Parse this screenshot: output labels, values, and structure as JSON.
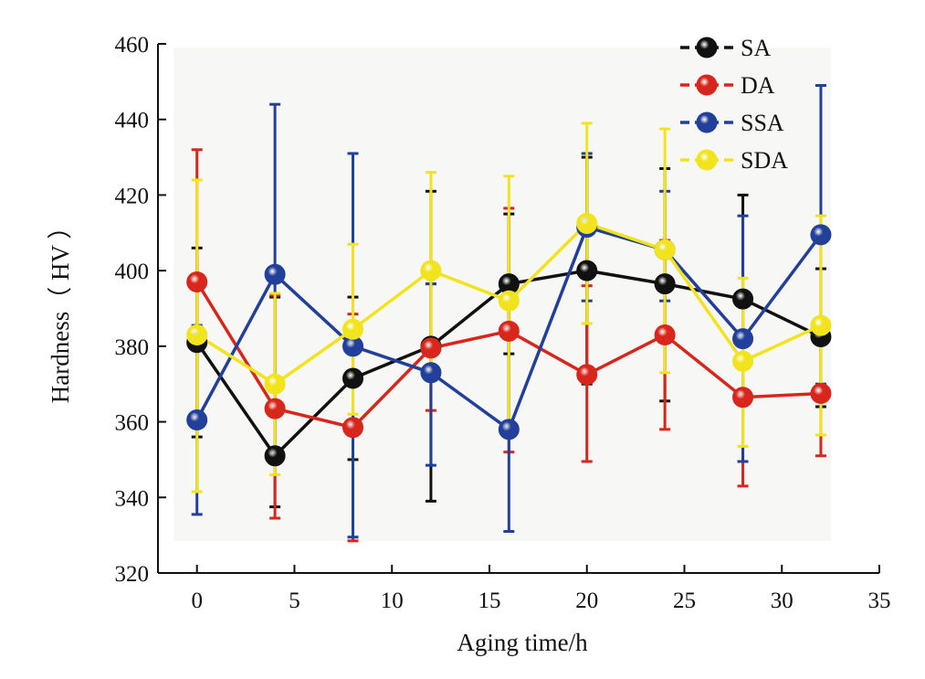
{
  "chart_data": {
    "type": "line",
    "title": "",
    "xlabel": "Aging time/h",
    "ylabel": "Hardness（ HV ）",
    "xlim": [
      -2,
      35
    ],
    "ylim": [
      320,
      460
    ],
    "x_ticks": [
      0,
      5,
      10,
      15,
      20,
      25,
      30,
      35
    ],
    "y_ticks": [
      320,
      340,
      360,
      380,
      400,
      420,
      440,
      460
    ],
    "x_tick_labels": [
      "0",
      "5",
      "10",
      "15",
      "20",
      "25",
      "30",
      "35"
    ],
    "y_tick_labels": [
      "320",
      "340",
      "360",
      "380",
      "400",
      "420",
      "440",
      "460"
    ],
    "grid": false,
    "legend_position": "top-right",
    "x": [
      0,
      4,
      8,
      12,
      16,
      20,
      24,
      28,
      32
    ],
    "series": [
      {
        "name": "SA",
        "color": "#111111",
        "values": [
          381,
          351,
          371.5,
          380,
          396.5,
          400,
          396.5,
          392.5,
          382.5
        ],
        "error_upper": [
          406,
          393,
          393,
          421,
          415,
          430,
          427,
          420,
          400.5
        ],
        "error_lower": [
          356,
          337.5,
          350,
          339,
          378,
          370,
          365.5,
          365,
          364
        ]
      },
      {
        "name": "DA",
        "color": "#d9261c",
        "values": [
          397,
          363.5,
          358.5,
          379.5,
          384,
          372.5,
          383,
          366.5,
          367.5
        ],
        "error_upper": [
          432,
          393.5,
          388.5,
          396.5,
          416.5,
          396,
          408,
          391,
          384.5
        ],
        "error_lower": [
          361.5,
          334.5,
          328.5,
          363,
          352,
          349.5,
          358,
          343,
          351
        ]
      },
      {
        "name": "SSA",
        "color": "#223f99",
        "values": [
          360.5,
          399,
          380,
          373,
          358,
          411.5,
          405.5,
          382,
          409.5
        ],
        "error_upper": [
          385.5,
          444,
          431,
          396.5,
          385,
          431,
          421,
          414.5,
          449
        ],
        "error_lower": [
          335.5,
          353,
          329.5,
          348.5,
          331,
          392,
          392,
          349.5,
          370
        ]
      },
      {
        "name": "SDA",
        "color": "#f1e31c",
        "values": [
          383,
          370,
          384.5,
          400,
          392,
          412.5,
          405.5,
          376,
          385.5
        ],
        "error_upper": [
          424,
          394,
          407,
          426,
          425,
          439,
          437.5,
          398,
          414.5
        ],
        "error_lower": [
          341.5,
          346,
          362,
          374,
          359.5,
          386,
          373,
          353.5,
          356.5
        ]
      }
    ]
  }
}
